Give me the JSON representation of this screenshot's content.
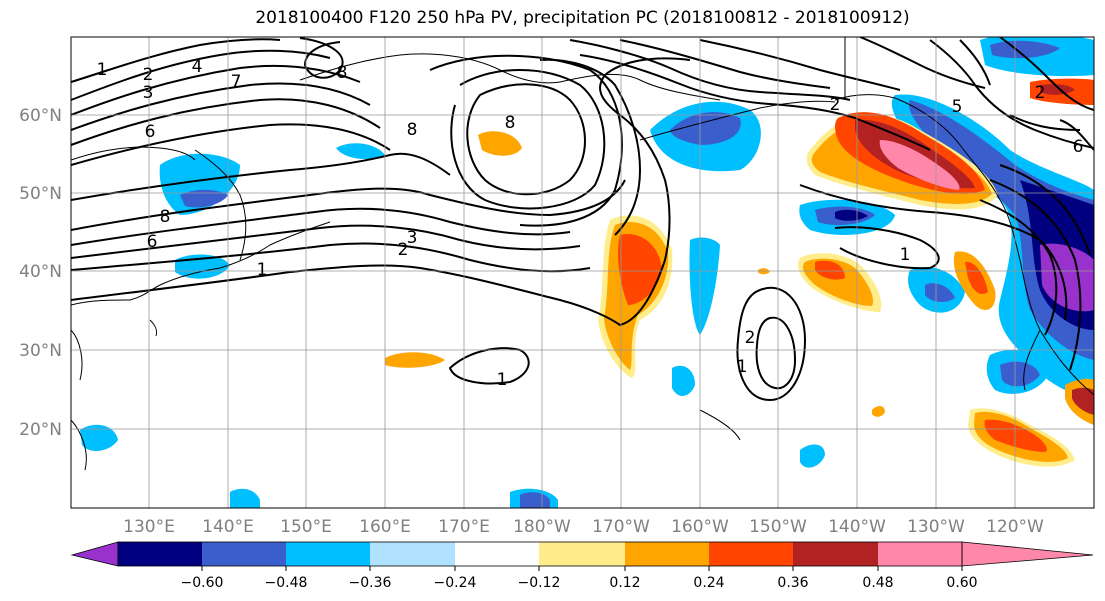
{
  "title": "2018100400 F120 250 hPa PV, precipitation PC (2018100812 - 2018100912)",
  "lat_labels": [
    "60°N",
    "50°N",
    "40°N",
    "30°N",
    "20°N"
  ],
  "lon_labels": [
    "130°E",
    "140°E",
    "150°E",
    "160°E",
    "170°E",
    "180°W",
    "170°W",
    "160°W",
    "150°W",
    "140°W",
    "130°W",
    "120°W"
  ],
  "colorbar": {
    "tick_labels": [
      "−0.60",
      "−0.48",
      "−0.36",
      "−0.24",
      "−0.12",
      "0.12",
      "0.24",
      "0.36",
      "0.48",
      "0.60"
    ],
    "colors": [
      "#9932CC",
      "#000080",
      "#3A5FCD",
      "#00BFFF",
      "#B0E2FF",
      "#FFFFFF",
      "#FFEC8B",
      "#FFA500",
      "#FF4500",
      "#B22222",
      "#FF88AA"
    ]
  },
  "contour_labels": [
    {
      "text": "1"
    },
    {
      "text": "2"
    },
    {
      "text": "4"
    },
    {
      "text": "7"
    },
    {
      "text": "8"
    },
    {
      "text": "3"
    },
    {
      "text": "6"
    },
    {
      "text": "8"
    },
    {
      "text": "3"
    },
    {
      "text": "2"
    },
    {
      "text": "1"
    },
    {
      "text": "8"
    },
    {
      "text": "6"
    },
    {
      "text": "8"
    },
    {
      "text": "2"
    },
    {
      "text": "1"
    },
    {
      "text": "1"
    },
    {
      "text": "2"
    },
    {
      "text": "1"
    },
    {
      "text": "6"
    },
    {
      "text": "2"
    },
    {
      "text": "5"
    }
  ]
}
